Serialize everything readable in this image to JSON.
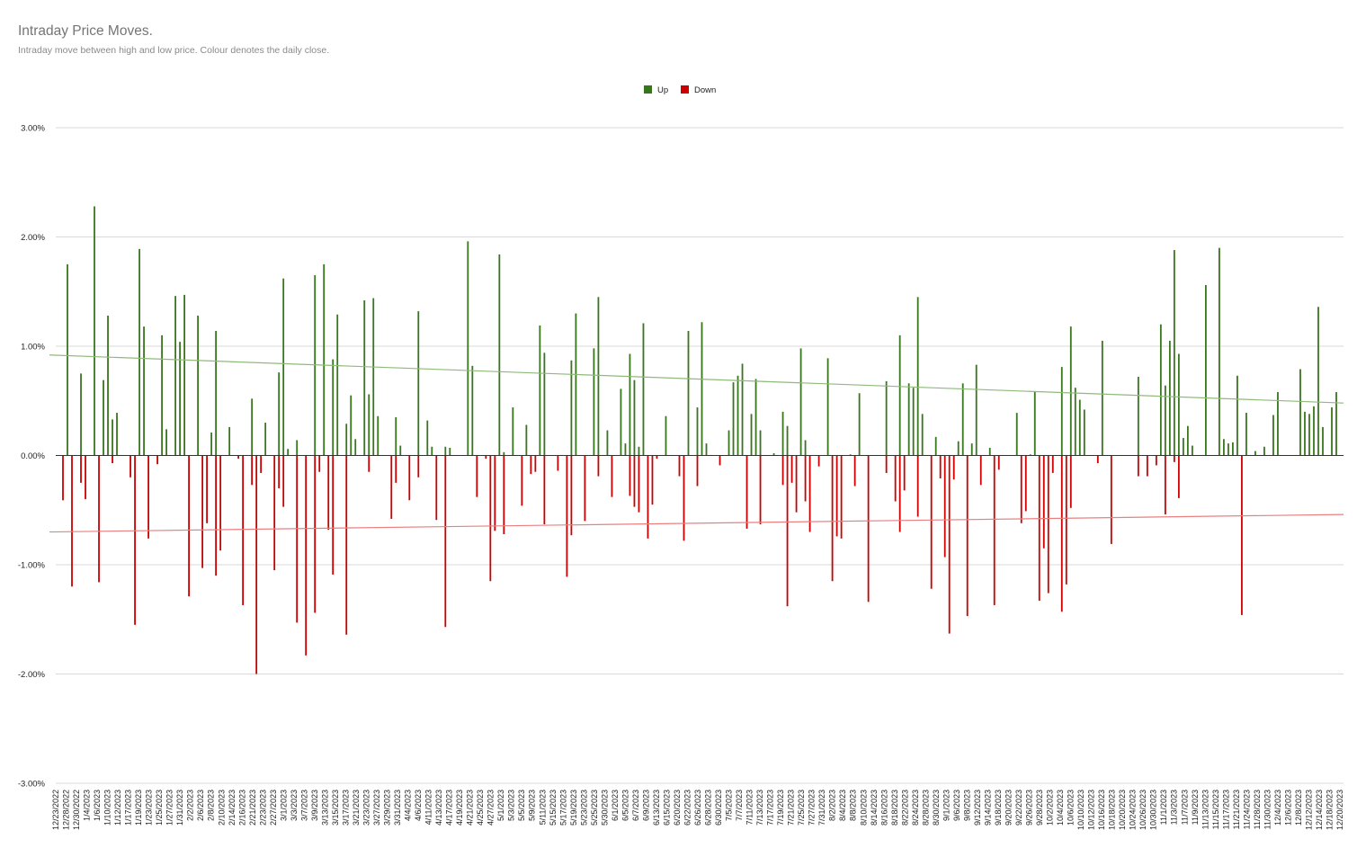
{
  "chart_data": {
    "type": "bar",
    "title": "Intraday Price Moves.",
    "subtitle": "Intraday move between high and low price. Colour denotes the daily close.",
    "legend": [
      {
        "name": "Up",
        "color": "#38761d"
      },
      {
        "name": "Down",
        "color": "#cc0000"
      }
    ],
    "legend_position": "top-center",
    "ylim": [
      -3,
      3
    ],
    "y_tick_values": [
      3,
      2,
      1,
      0,
      -1,
      -2,
      -3
    ],
    "y_tick_labels": [
      "3.00%",
      "2.00%",
      "1.00%",
      "0.00%",
      "-1.00%",
      "-2.00%",
      "-3.00%"
    ],
    "grid": true,
    "x_start": "2022-12-23",
    "x_end": "2023-12-20",
    "x_tick_labels": [
      "12/23/2022",
      "12/28/2022",
      "12/30/2022",
      "1/4/2023",
      "1/6/2023",
      "1/10/2023",
      "1/12/2023",
      "1/17/2023",
      "1/19/2023",
      "1/23/2023",
      "1/25/2023",
      "1/27/2023",
      "1/31/2023",
      "2/2/2023",
      "2/6/2023",
      "2/8/2023",
      "2/10/2023",
      "2/14/2023",
      "2/16/2023",
      "2/21/2023",
      "2/23/2023",
      "2/27/2023",
      "3/1/2023",
      "3/3/2023",
      "3/7/2023",
      "3/9/2023",
      "3/13/2023",
      "3/15/2023",
      "3/17/2023",
      "3/21/2023",
      "3/23/2023",
      "3/27/2023",
      "3/29/2023",
      "3/31/2023",
      "4/4/2023",
      "4/6/2023",
      "4/11/2023",
      "4/13/2023",
      "4/17/2023",
      "4/19/2023",
      "4/21/2023",
      "4/25/2023",
      "4/27/2023",
      "5/1/2023",
      "5/3/2023",
      "5/5/2023",
      "5/9/2023",
      "5/11/2023",
      "5/15/2023",
      "5/17/2023",
      "5/19/2023",
      "5/23/2023",
      "5/25/2023",
      "5/30/2023",
      "6/1/2023",
      "6/5/2023",
      "6/7/2023",
      "6/9/2023",
      "6/13/2023",
      "6/15/2023",
      "6/20/2023",
      "6/22/2023",
      "6/26/2023",
      "6/28/2023",
      "6/30/2023",
      "7/5/2023",
      "7/7/2023",
      "7/11/2023",
      "7/13/2023",
      "7/17/2023",
      "7/19/2023",
      "7/21/2023",
      "7/25/2023",
      "7/27/2023",
      "7/31/2023",
      "8/2/2023",
      "8/4/2023",
      "8/8/2023",
      "8/10/2023",
      "8/14/2023",
      "8/16/2023",
      "8/18/2023",
      "8/22/2023",
      "8/24/2023",
      "8/28/2023",
      "8/30/2023",
      "9/1/2023",
      "9/6/2023",
      "9/8/2023",
      "9/12/2023",
      "9/14/2023",
      "9/18/2023",
      "9/20/2023",
      "9/22/2023",
      "9/26/2023",
      "9/28/2023",
      "10/2/2023",
      "10/4/2023",
      "10/6/2023",
      "10/10/2023",
      "10/12/2023",
      "10/16/2023",
      "10/18/2023",
      "10/20/2023",
      "10/24/2023",
      "10/26/2023",
      "10/30/2023",
      "11/1/2023",
      "11/3/2023",
      "11/7/2023",
      "11/9/2023",
      "11/13/2023",
      "11/15/2023",
      "11/17/2023",
      "11/21/2023",
      "11/24/2023",
      "11/28/2023",
      "11/30/2023",
      "12/4/2023",
      "12/6/2023",
      "12/8/2023",
      "12/12/2023",
      "12/14/2023",
      "12/18/2023",
      "12/20/2023"
    ],
    "series": [
      {
        "name": "Up",
        "values": [
          0,
          0,
          1.75,
          0,
          0,
          0.75,
          0,
          0,
          2.28,
          0,
          0.69,
          1.28,
          0.33,
          0.39,
          0,
          0,
          0,
          0,
          1.89,
          1.18,
          0,
          0,
          0,
          1.1,
          0.24,
          0,
          1.46,
          1.04,
          1.47,
          0,
          0,
          1.28,
          0,
          0,
          0.21,
          1.14,
          0,
          0,
          0.26,
          0,
          0,
          0,
          0,
          0.52,
          0,
          0,
          0.3,
          0,
          0,
          0.76,
          1.62,
          0.06,
          0,
          0.14,
          0,
          0,
          0,
          1.65,
          0,
          1.75,
          0,
          0.88,
          1.29,
          0,
          0.29,
          0.55,
          0.15,
          0,
          1.42,
          0.56,
          1.44,
          0.36,
          0,
          0,
          0,
          0.35,
          0.09,
          0,
          0,
          0,
          1.32,
          0,
          0.32,
          0.08,
          0,
          0,
          0.08,
          0.07,
          0,
          0,
          0,
          1.96,
          0.82,
          0,
          0,
          0,
          0,
          0,
          1.84,
          0.03,
          0,
          0.44,
          0,
          0,
          0.28,
          0,
          0,
          1.19,
          0.94,
          0,
          0,
          0,
          0,
          0,
          0.87,
          1.3,
          0,
          0,
          0,
          0.98,
          1.45,
          0,
          0.23,
          0,
          0,
          0.61,
          0.11,
          0.93,
          0.69,
          0.08,
          1.21,
          0,
          0,
          0,
          0,
          0.36,
          0,
          0,
          0,
          0,
          1.14,
          0,
          0.44,
          1.22,
          0.11,
          0,
          0,
          0,
          0,
          0.23,
          0.67,
          0.73,
          0.84,
          0,
          0.38,
          0.7,
          0.23,
          0,
          0,
          0.02,
          0,
          0.4,
          0.27,
          0,
          0,
          0.98,
          0.14,
          0,
          0,
          0,
          0,
          0.89,
          0,
          0,
          0,
          0,
          0.01,
          0,
          0.57,
          0,
          0,
          0,
          0,
          0,
          0.68,
          0,
          0,
          1.1,
          0,
          0.66,
          0.62,
          1.45,
          0.38,
          0,
          0,
          0.17,
          0,
          0,
          0,
          0,
          0.13,
          0.66,
          0,
          0.11,
          0.83,
          0,
          0,
          0.07,
          0,
          0,
          0,
          0,
          0,
          0.39,
          0,
          0,
          0.01,
          0.58,
          0,
          0,
          0,
          0,
          0,
          0.81,
          0,
          1.18,
          0.62,
          0.51,
          0.42,
          0,
          0,
          0,
          1.05,
          0,
          0,
          0,
          0,
          0,
          0,
          0,
          0.72,
          0,
          0,
          0,
          0,
          1.2,
          0.64,
          1.05,
          1.88,
          0.93,
          0.16,
          0.27,
          0.09,
          0,
          0,
          1.56,
          0,
          0,
          1.9,
          0.15,
          0.11,
          0.12,
          0.73,
          0,
          0.39,
          0,
          0.04,
          0,
          0.08,
          0,
          0.37,
          0.58,
          0,
          0,
          0,
          0,
          0.79,
          0.4,
          0.38,
          0.45,
          1.36,
          0.26,
          0,
          0.44,
          0.58,
          0
        ]
      },
      {
        "name": "Down",
        "values": [
          0,
          -0.41,
          0,
          -1.2,
          0,
          -0.25,
          -0.4,
          0,
          0,
          -1.16,
          0,
          0,
          -0.07,
          0,
          0,
          0,
          -0.2,
          -1.55,
          0,
          0,
          -0.76,
          0,
          -0.08,
          0,
          0,
          0,
          0,
          0,
          0,
          -1.29,
          0,
          0,
          -1.03,
          -0.62,
          0,
          -1.1,
          -0.87,
          0,
          0,
          0,
          -0.03,
          -1.37,
          0,
          -0.27,
          -2.0,
          -0.16,
          0,
          0,
          -1.05,
          -0.3,
          -0.47,
          0,
          0,
          -1.53,
          0,
          -1.83,
          0,
          -1.44,
          -0.15,
          0,
          -0.68,
          -1.09,
          0,
          0,
          -1.64,
          0,
          0,
          0,
          0,
          -0.15,
          0,
          0,
          0,
          0,
          -0.58,
          -0.25,
          0,
          0,
          -0.41,
          0,
          -0.2,
          0,
          0,
          0,
          -0.59,
          0,
          -1.57,
          0,
          0,
          0,
          0,
          0,
          0,
          -0.38,
          0,
          -0.03,
          -1.15,
          -0.69,
          0,
          -0.72,
          0,
          0,
          0,
          -0.46,
          0,
          -0.17,
          -0.15,
          0,
          -0.63,
          0,
          0,
          -0.14,
          0,
          -1.11,
          -0.73,
          0,
          0,
          -0.6,
          0,
          0,
          -0.19,
          0,
          0,
          -0.38,
          0,
          0,
          0,
          -0.37,
          -0.47,
          -0.52,
          0,
          -0.76,
          -0.45,
          -0.03,
          0,
          0,
          0,
          0,
          -0.19,
          -0.78,
          0,
          0,
          -0.28,
          0,
          0,
          0,
          0,
          -0.09,
          0,
          0,
          0,
          0,
          0,
          -0.67,
          0,
          0,
          -0.63,
          0,
          0,
          0,
          0,
          -0.27,
          -1.38,
          -0.25,
          -0.52,
          0,
          -0.42,
          -0.7,
          0,
          -0.1,
          0,
          0,
          -1.15,
          -0.74,
          -0.76,
          0,
          0,
          -0.28,
          0,
          0,
          -1.34,
          0,
          0,
          0,
          -0.16,
          0,
          -0.42,
          -0.7,
          -0.32,
          0,
          0,
          -0.56,
          0,
          0,
          -1.22,
          0,
          -0.21,
          -0.93,
          -1.63,
          -0.22,
          0,
          0,
          -1.47,
          0,
          0,
          -0.27,
          0,
          0,
          -1.37,
          -0.13,
          0,
          0,
          0,
          0,
          -0.62,
          -0.51,
          0,
          0,
          -1.33,
          -0.85,
          -1.26,
          -0.16,
          0,
          -1.43,
          -1.18,
          -0.48,
          0,
          0,
          0,
          0,
          0,
          -0.07,
          0,
          0,
          -0.81,
          0,
          0,
          0,
          0,
          0,
          -0.19,
          0,
          -0.19,
          0,
          -0.09,
          0,
          -0.54,
          0,
          -0.06,
          -0.39,
          0,
          0,
          0,
          0,
          0,
          0,
          0,
          0,
          0,
          0,
          0,
          0,
          0,
          -1.46
        ]
      }
    ],
    "trendlines": [
      {
        "name": "Up",
        "start": 0.92,
        "end": 0.48
      },
      {
        "name": "Down",
        "start": -0.7,
        "end": -0.54
      }
    ]
  }
}
